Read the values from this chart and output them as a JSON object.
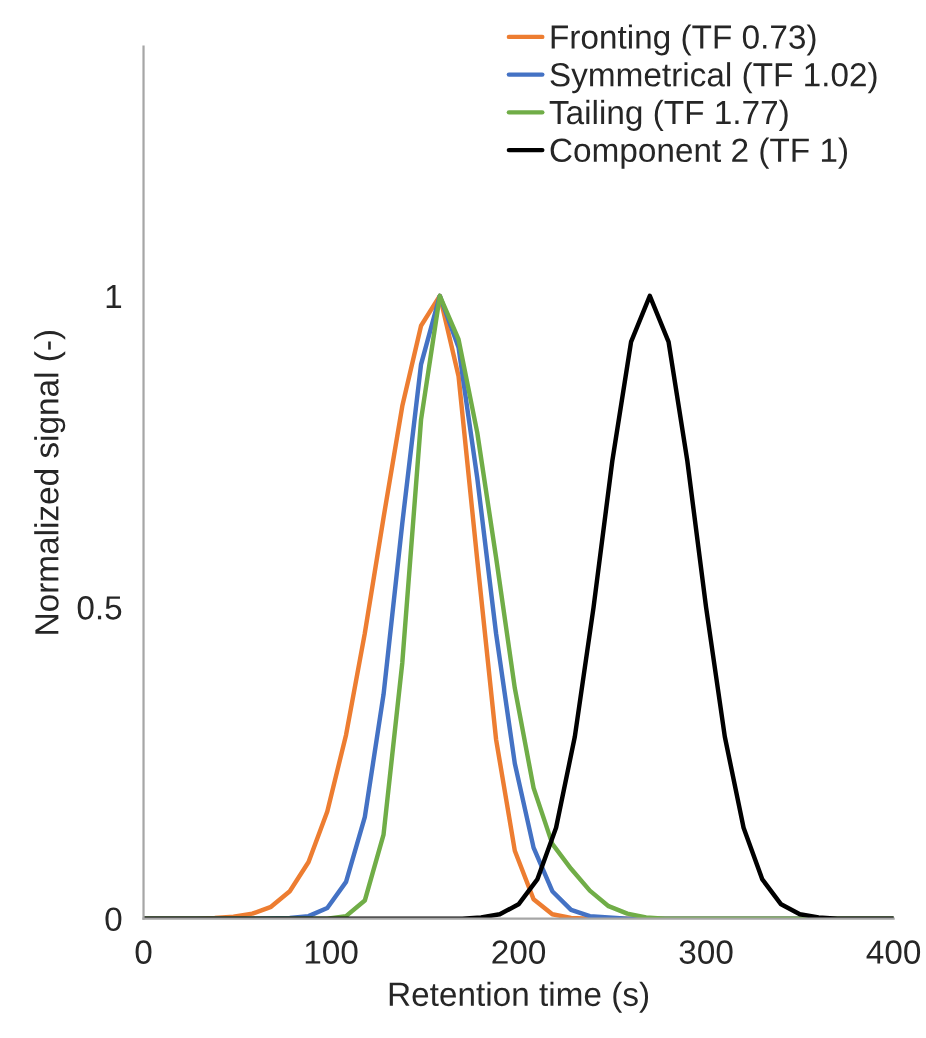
{
  "chart_data": {
    "type": "line",
    "xlabel": "Retention time (s)",
    "ylabel": "Normalized signal (-)",
    "xlim": [
      0,
      400
    ],
    "xticks": [
      0,
      100,
      200,
      300,
      400
    ],
    "ylim": [
      0,
      1.4
    ],
    "yticks": [
      0,
      0.5,
      1
    ],
    "grid": false,
    "legend": "top right",
    "marker": "none",
    "line_style": "solid",
    "series": [
      {
        "name": "Fronting (TF 0.73)",
        "color": "#ed7d31",
        "x": [
          0,
          28,
          38,
          48,
          58,
          68,
          78,
          88,
          98,
          108,
          118,
          128,
          138,
          148,
          158,
          168,
          178,
          188,
          198,
          208,
          218,
          228,
          238,
          400
        ],
        "values": [
          0,
          0,
          0.001,
          0.003,
          0.008,
          0.019,
          0.044,
          0.091,
          0.172,
          0.295,
          0.458,
          0.644,
          0.823,
          0.952,
          1,
          0.871,
          0.575,
          0.288,
          0.109,
          0.031,
          0.007,
          0.001,
          0,
          0
        ]
      },
      {
        "name": "Symmetrical (TF 1.02)",
        "color": "#4472c4",
        "x": [
          0,
          58,
          78,
          88,
          98,
          108,
          118,
          128,
          138,
          148,
          158,
          168,
          178,
          188,
          198,
          208,
          218,
          228,
          238,
          258,
          400
        ],
        "values": [
          0,
          0,
          0.001,
          0.004,
          0.017,
          0.059,
          0.163,
          0.36,
          0.635,
          0.89,
          1,
          0.917,
          0.707,
          0.458,
          0.249,
          0.114,
          0.044,
          0.014,
          0.004,
          0,
          0
        ]
      },
      {
        "name": "Tailing (TF 1.77)",
        "color": "#70ad47",
        "x": [
          0,
          98,
          108,
          118,
          128,
          138,
          148,
          158,
          168,
          178,
          188,
          198,
          208,
          218,
          228,
          238,
          248,
          258,
          268,
          278,
          400
        ],
        "values": [
          0,
          0,
          0.004,
          0.029,
          0.135,
          0.411,
          0.801,
          1,
          0.93,
          0.78,
          0.58,
          0.37,
          0.21,
          0.12,
          0.08,
          0.045,
          0.02,
          0.008,
          0.002,
          0,
          0
        ]
      },
      {
        "name": "Component 2 (TF 1)",
        "color": "#000000",
        "x": [
          0,
          170,
          180,
          190,
          200,
          210,
          220,
          230,
          240,
          250,
          260,
          270,
          280,
          290,
          300,
          310,
          320,
          330,
          340,
          350,
          360,
          370,
          400
        ],
        "values": [
          0,
          0,
          0.002,
          0.007,
          0.023,
          0.063,
          0.146,
          0.292,
          0.5,
          0.735,
          0.926,
          1,
          0.926,
          0.735,
          0.5,
          0.292,
          0.146,
          0.063,
          0.023,
          0.007,
          0.002,
          0,
          0
        ]
      }
    ]
  }
}
